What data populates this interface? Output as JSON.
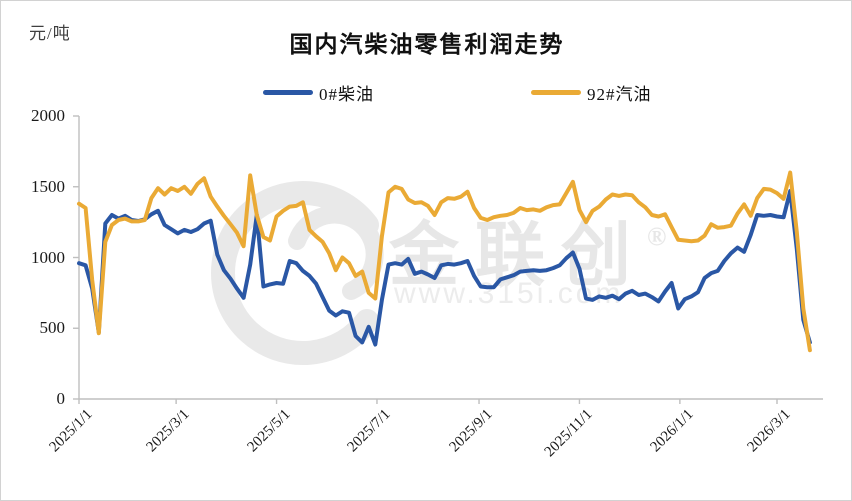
{
  "title": "国内汽柴油零售利润走势",
  "unit_label": "元/吨",
  "watermark": {
    "brand": "金联创",
    "reg": "®",
    "url": "www.315i.com"
  },
  "legend": {
    "diesel_label": "0#柴油",
    "gasoline_label": "92#汽油"
  },
  "colors": {
    "diesel": "#2A57A5",
    "gasoline": "#EAAA35",
    "axis": "#BFBFBF",
    "watermark": "#E9E9E9"
  },
  "chart_data": {
    "type": "line",
    "title": "国内汽柴油零售利润走势",
    "ylabel": "元/吨",
    "ylim": [
      0,
      2000
    ],
    "y_ticks": [
      0,
      500,
      1000,
      1500,
      2000
    ],
    "grid": false,
    "legend_position": "top",
    "x_start_date": "2025/1/1",
    "x_step_days": 4,
    "x_tick_labels": [
      {
        "label": "2025/1/1",
        "day": 0
      },
      {
        "label": "2025/3/1",
        "day": 59
      },
      {
        "label": "2025/5/1",
        "day": 120
      },
      {
        "label": "2025/7/1",
        "day": 181
      },
      {
        "label": "2025/9/1",
        "day": 243
      },
      {
        "label": "2025/11/1",
        "day": 304
      },
      {
        "label": "2026/1/1",
        "day": 365
      },
      {
        "label": "2026/3/1",
        "day": 424
      }
    ],
    "series": [
      {
        "name": "0#柴油",
        "color": "#2A57A5",
        "values": [
          960,
          945,
          780,
          470,
          1240,
          1300,
          1275,
          1295,
          1265,
          1258,
          1270,
          1305,
          1330,
          1230,
          1200,
          1170,
          1195,
          1180,
          1200,
          1240,
          1260,
          1020,
          910,
          850,
          780,
          715,
          950,
          1300,
          795,
          810,
          820,
          815,
          975,
          960,
          905,
          870,
          815,
          720,
          625,
          590,
          620,
          610,
          445,
          400,
          510,
          385,
          700,
          950,
          960,
          950,
          990,
          885,
          900,
          880,
          855,
          945,
          955,
          950,
          960,
          975,
          870,
          795,
          790,
          790,
          845,
          860,
          875,
          900,
          905,
          910,
          905,
          910,
          925,
          945,
          995,
          1035,
          920,
          710,
          700,
          725,
          715,
          730,
          705,
          745,
          765,
          735,
          745,
          720,
          690,
          760,
          820,
          640,
          705,
          725,
          755,
          855,
          890,
          905,
          975,
          1030,
          1070,
          1040,
          1160,
          1300,
          1295,
          1300,
          1290,
          1285,
          1470,
          1060,
          560,
          400
        ]
      },
      {
        "name": "92#汽油",
        "color": "#EAAA35",
        "values": [
          1380,
          1350,
          840,
          465,
          1110,
          1230,
          1265,
          1275,
          1255,
          1255,
          1265,
          1420,
          1490,
          1445,
          1490,
          1470,
          1500,
          1450,
          1520,
          1560,
          1430,
          1360,
          1295,
          1235,
          1175,
          1080,
          1580,
          1300,
          1145,
          1120,
          1290,
          1330,
          1360,
          1365,
          1390,
          1195,
          1150,
          1110,
          1030,
          910,
          1000,
          960,
          870,
          900,
          750,
          710,
          1150,
          1460,
          1500,
          1485,
          1410,
          1385,
          1390,
          1365,
          1300,
          1390,
          1420,
          1415,
          1430,
          1465,
          1350,
          1280,
          1265,
          1285,
          1295,
          1300,
          1315,
          1350,
          1335,
          1340,
          1330,
          1355,
          1370,
          1375,
          1455,
          1535,
          1335,
          1250,
          1330,
          1360,
          1410,
          1445,
          1435,
          1445,
          1440,
          1390,
          1355,
          1300,
          1290,
          1305,
          1215,
          1125,
          1120,
          1115,
          1120,
          1155,
          1235,
          1210,
          1215,
          1225,
          1310,
          1375,
          1295,
          1420,
          1485,
          1480,
          1455,
          1415,
          1600,
          1180,
          640,
          345
        ]
      }
    ]
  }
}
